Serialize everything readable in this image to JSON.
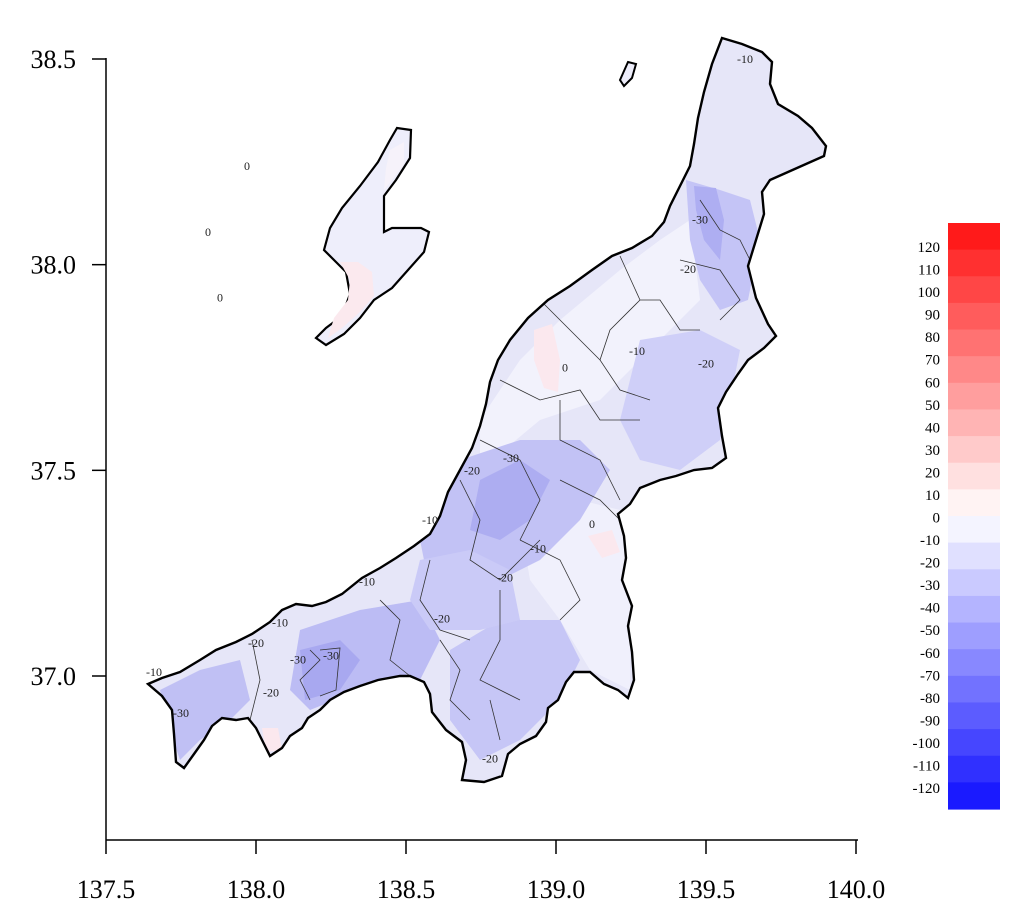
{
  "map": {
    "x_ticks": [
      "137.5",
      "138.0",
      "138.5",
      "139.0",
      "139.5",
      "140.0"
    ],
    "y_ticks": [
      "37.0",
      "37.5",
      "38.0",
      "38.5"
    ],
    "xlim": [
      137.5,
      140.0
    ],
    "ylim": [
      36.6,
      38.6
    ],
    "contour_labels": [
      {
        "text": "-10",
        "lon": 139.63,
        "lat": 38.49
      },
      {
        "text": "0",
        "lon": 137.97,
        "lat": 38.23
      },
      {
        "text": "0",
        "lon": 137.84,
        "lat": 38.07
      },
      {
        "text": "0",
        "lon": 137.88,
        "lat": 37.91
      },
      {
        "text": "-30",
        "lon": 139.48,
        "lat": 38.1
      },
      {
        "text": "-20",
        "lon": 139.44,
        "lat": 37.98
      },
      {
        "text": "-10",
        "lon": 139.27,
        "lat": 37.78
      },
      {
        "text": "-20",
        "lon": 139.5,
        "lat": 37.75
      },
      {
        "text": "0",
        "lon": 139.03,
        "lat": 37.74
      },
      {
        "text": "-30",
        "lon": 138.85,
        "lat": 37.52
      },
      {
        "text": "-20",
        "lon": 138.72,
        "lat": 37.49
      },
      {
        "text": "-10",
        "lon": 138.58,
        "lat": 37.37
      },
      {
        "text": "0",
        "lon": 139.12,
        "lat": 37.36
      },
      {
        "text": "-10",
        "lon": 138.94,
        "lat": 37.3
      },
      {
        "text": "-20",
        "lon": 138.83,
        "lat": 37.23
      },
      {
        "text": "-10",
        "lon": 138.37,
        "lat": 37.22
      },
      {
        "text": "-20",
        "lon": 138.62,
        "lat": 37.13
      },
      {
        "text": "-10",
        "lon": 138.08,
        "lat": 37.12
      },
      {
        "text": "-20",
        "lon": 138.0,
        "lat": 37.07
      },
      {
        "text": "-30",
        "lon": 138.14,
        "lat": 37.03
      },
      {
        "text": "-30",
        "lon": 138.25,
        "lat": 37.04
      },
      {
        "text": "-10",
        "lon": 137.66,
        "lat": 37.0
      },
      {
        "text": "-20",
        "lon": 138.05,
        "lat": 36.95
      },
      {
        "text": "-30",
        "lon": 137.75,
        "lat": 36.9
      },
      {
        "text": "-20",
        "lon": 138.78,
        "lat": 36.79
      }
    ]
  },
  "colorbar": {
    "labels": [
      "120",
      "110",
      "100",
      "90",
      "80",
      "70",
      "60",
      "50",
      "40",
      "30",
      "20",
      "10",
      "0",
      "-10",
      "-20",
      "-30",
      "-40",
      "-50",
      "-60",
      "-70",
      "-80",
      "-90",
      "-100",
      "-110",
      "-120"
    ],
    "colors_top_to_bottom": [
      "#ff1a1a",
      "#ff3030",
      "#ff4646",
      "#ff5c5c",
      "#ff7272",
      "#ff8888",
      "#ff9e9e",
      "#ffb4b4",
      "#ffcaca",
      "#ffe0e0",
      "#fff3f3",
      "#f4f4ff",
      "#e0e0ff",
      "#cacaff",
      "#b4b4ff",
      "#9e9eff",
      "#8888ff",
      "#7272ff",
      "#5c5cff",
      "#4646ff",
      "#3030ff",
      "#1a1aff"
    ],
    "land_base_color": "#eaeaf8",
    "coast_color": "#000000"
  }
}
